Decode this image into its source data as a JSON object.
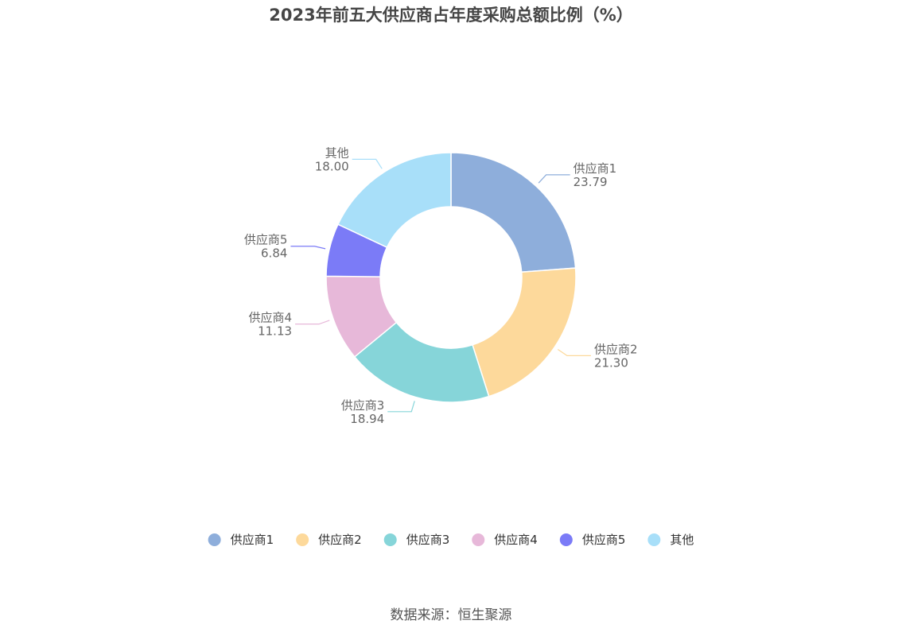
{
  "chart_data": {
    "type": "pie",
    "variant": "donut",
    "title": "2023年前五大供应商占年度采购总额比例（%）",
    "categories": [
      "供应商1",
      "供应商2",
      "供应商3",
      "供应商4",
      "供应商5",
      "其他"
    ],
    "values": [
      23.79,
      21.3,
      18.94,
      11.13,
      6.84,
      18.0
    ],
    "value_labels": [
      "23.79",
      "21.30",
      "18.94",
      "11.13",
      "6.84",
      "18.00"
    ],
    "colors": [
      "#8eaedb",
      "#fdd99b",
      "#86d5d9",
      "#e7b8d9",
      "#7b7bf7",
      "#a8dff9"
    ],
    "legend_position": "bottom"
  },
  "source": "数据来源：恒生聚源"
}
